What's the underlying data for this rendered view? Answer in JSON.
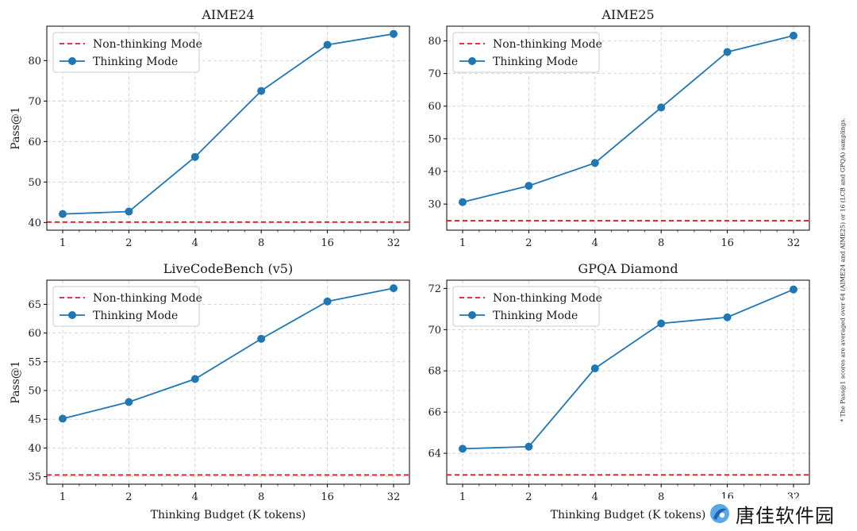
{
  "side_note": "* The Pass@1 scores are averaged over 64 (AIME24 and AIME25) or 16 (LCB and GPQA) samplings.",
  "watermark": "唐佳软件园",
  "legend": {
    "baseline": "Non-thinking Mode",
    "series": "Thinking Mode"
  },
  "colors": {
    "series": "#1f77b4",
    "baseline": "#e31a1c",
    "grid": "#cccccc"
  },
  "chart_data": [
    {
      "type": "line",
      "title": "AIME24",
      "x": [
        "1",
        "2",
        "4",
        "8",
        "16",
        "32"
      ],
      "series": [
        {
          "name": "Thinking Mode",
          "values": [
            42.1,
            42.7,
            56.2,
            72.5,
            83.9,
            86.6
          ]
        }
      ],
      "baseline": {
        "name": "Non-thinking Mode",
        "value": 40.1
      },
      "ylabel": "Pass@1",
      "xlabel": "",
      "yticks": [
        40,
        50,
        60,
        70,
        80
      ],
      "ylim": [
        38.1,
        88.5
      ],
      "grid": true,
      "legend_position": "top-left"
    },
    {
      "type": "line",
      "title": "AIME25",
      "x": [
        "1",
        "2",
        "4",
        "8",
        "16",
        "32"
      ],
      "series": [
        {
          "name": "Thinking Mode",
          "values": [
            30.6,
            35.6,
            42.6,
            59.6,
            76.6,
            81.6
          ]
        }
      ],
      "baseline": {
        "name": "Non-thinking Mode",
        "value": 24.9
      },
      "ylabel": "",
      "xlabel": "",
      "yticks": [
        30,
        40,
        50,
        60,
        70,
        80
      ],
      "ylim": [
        22,
        84.5
      ],
      "grid": true,
      "legend_position": "top-left"
    },
    {
      "type": "line",
      "title": "LiveCodeBench (v5)",
      "x": [
        "1",
        "2",
        "4",
        "8",
        "16",
        "32"
      ],
      "series": [
        {
          "name": "Thinking Mode",
          "values": [
            45.1,
            48.0,
            52.0,
            59.0,
            65.5,
            67.8
          ]
        }
      ],
      "baseline": {
        "name": "Non-thinking Mode",
        "value": 35.3
      },
      "ylabel": "Pass@1",
      "xlabel": "Thinking Budget (K tokens)",
      "yticks": [
        35,
        40,
        45,
        50,
        55,
        60,
        65
      ],
      "ylim": [
        33.7,
        69.2
      ],
      "grid": true,
      "legend_position": "top-left"
    },
    {
      "type": "line",
      "title": "GPQA Diamond",
      "x": [
        "1",
        "2",
        "4",
        "8",
        "16",
        "32"
      ],
      "series": [
        {
          "name": "Thinking Mode",
          "values": [
            64.22,
            64.32,
            68.12,
            70.3,
            70.6,
            71.95
          ]
        }
      ],
      "baseline": {
        "name": "Non-thinking Mode",
        "value": 62.95
      },
      "ylabel": "",
      "xlabel": "Thinking Budget (K tokens)",
      "yticks": [
        64,
        66,
        68,
        70,
        72
      ],
      "ylim": [
        62.5,
        72.4
      ],
      "grid": true,
      "legend_position": "top-left"
    }
  ]
}
